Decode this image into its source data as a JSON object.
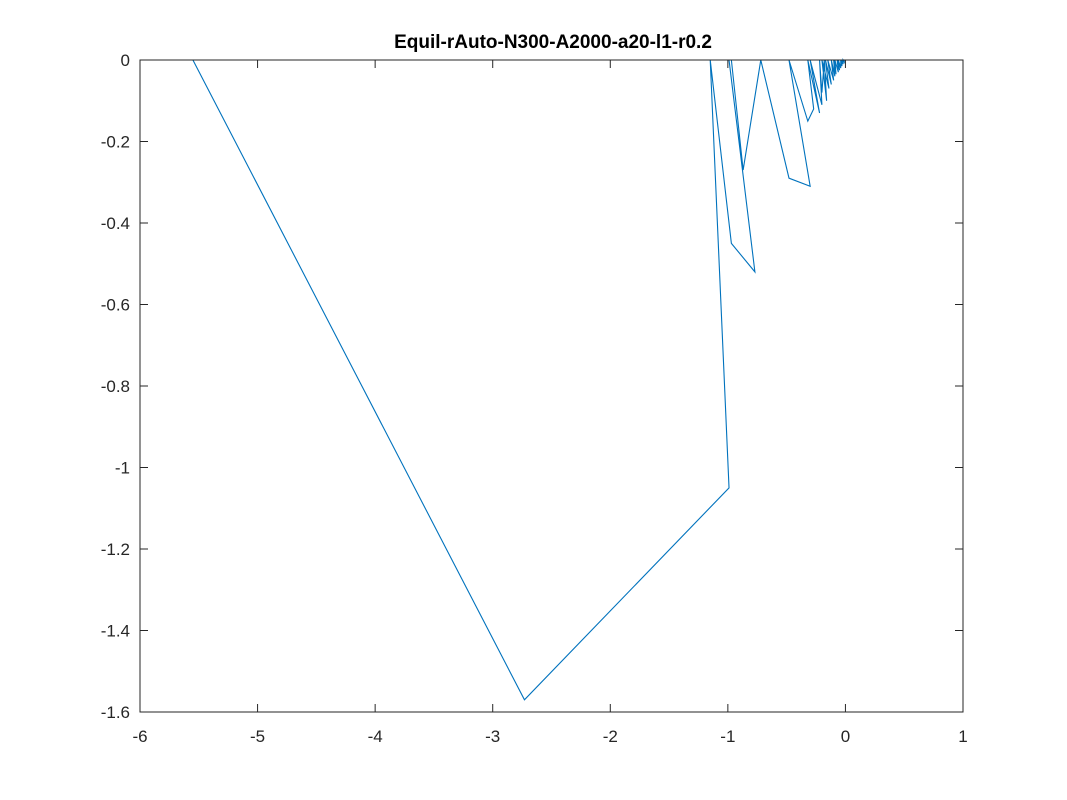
{
  "chart_data": {
    "type": "line",
    "title": "Equil-rAuto-N300-A2000-a20-l1-r0.2",
    "xlabel": "",
    "ylabel": "",
    "xlim": [
      -6,
      1
    ],
    "ylim": [
      -1.6,
      0
    ],
    "xticks": [
      -6,
      -5,
      -4,
      -3,
      -2,
      -1,
      0,
      1
    ],
    "yticks": [
      0,
      -0.2,
      -0.4,
      -0.6,
      -0.8,
      -1,
      -1.2,
      -1.4,
      -1.6
    ],
    "xtick_labels": [
      "-6",
      "-5",
      "-4",
      "-3",
      "-2",
      "-1",
      "0",
      "1"
    ],
    "ytick_labels": [
      "0",
      "-0.2",
      "-0.4",
      "-0.6",
      "-0.8",
      "-1",
      "-1.2",
      "-1.4",
      "-1.6"
    ],
    "grid": false,
    "box": true,
    "series": [
      {
        "color": "#0072BD",
        "x": [
          -5.55,
          -2.73,
          -0.99,
          -1.15,
          -0.97,
          -0.77,
          -0.99,
          -0.97,
          -0.87,
          -0.72,
          -0.48,
          -0.3,
          -0.48,
          -0.48,
          -0.32,
          -0.27,
          -0.32,
          -0.22,
          -0.3,
          -0.2,
          -0.22,
          -0.2,
          -0.18,
          -0.16,
          -0.2,
          -0.14,
          -0.17,
          -0.12,
          -0.15,
          -0.1,
          -0.12,
          -0.09,
          -0.1,
          -0.08,
          -0.09,
          -0.06,
          -0.07,
          -0.05,
          -0.06,
          -0.04,
          -0.04,
          -0.03,
          -0.03,
          -0.02,
          -0.02,
          -0.01,
          -0.01,
          0.0
        ],
        "y": [
          0.0,
          -1.57,
          -1.05,
          0.0,
          -0.45,
          -0.52,
          0.0,
          0.0,
          -0.27,
          0.0,
          -0.29,
          -0.31,
          0.0,
          0.0,
          -0.15,
          -0.12,
          0.0,
          -0.13,
          0.0,
          -0.11,
          0.0,
          -0.08,
          0.0,
          -0.1,
          0.0,
          -0.07,
          0.0,
          -0.06,
          0.0,
          -0.05,
          0.0,
          -0.04,
          0.0,
          -0.035,
          0.0,
          -0.03,
          0.0,
          -0.025,
          0.0,
          -0.02,
          0.0,
          -0.015,
          0.0,
          -0.01,
          0.0,
          -0.005,
          0.0,
          0.0
        ]
      }
    ]
  }
}
